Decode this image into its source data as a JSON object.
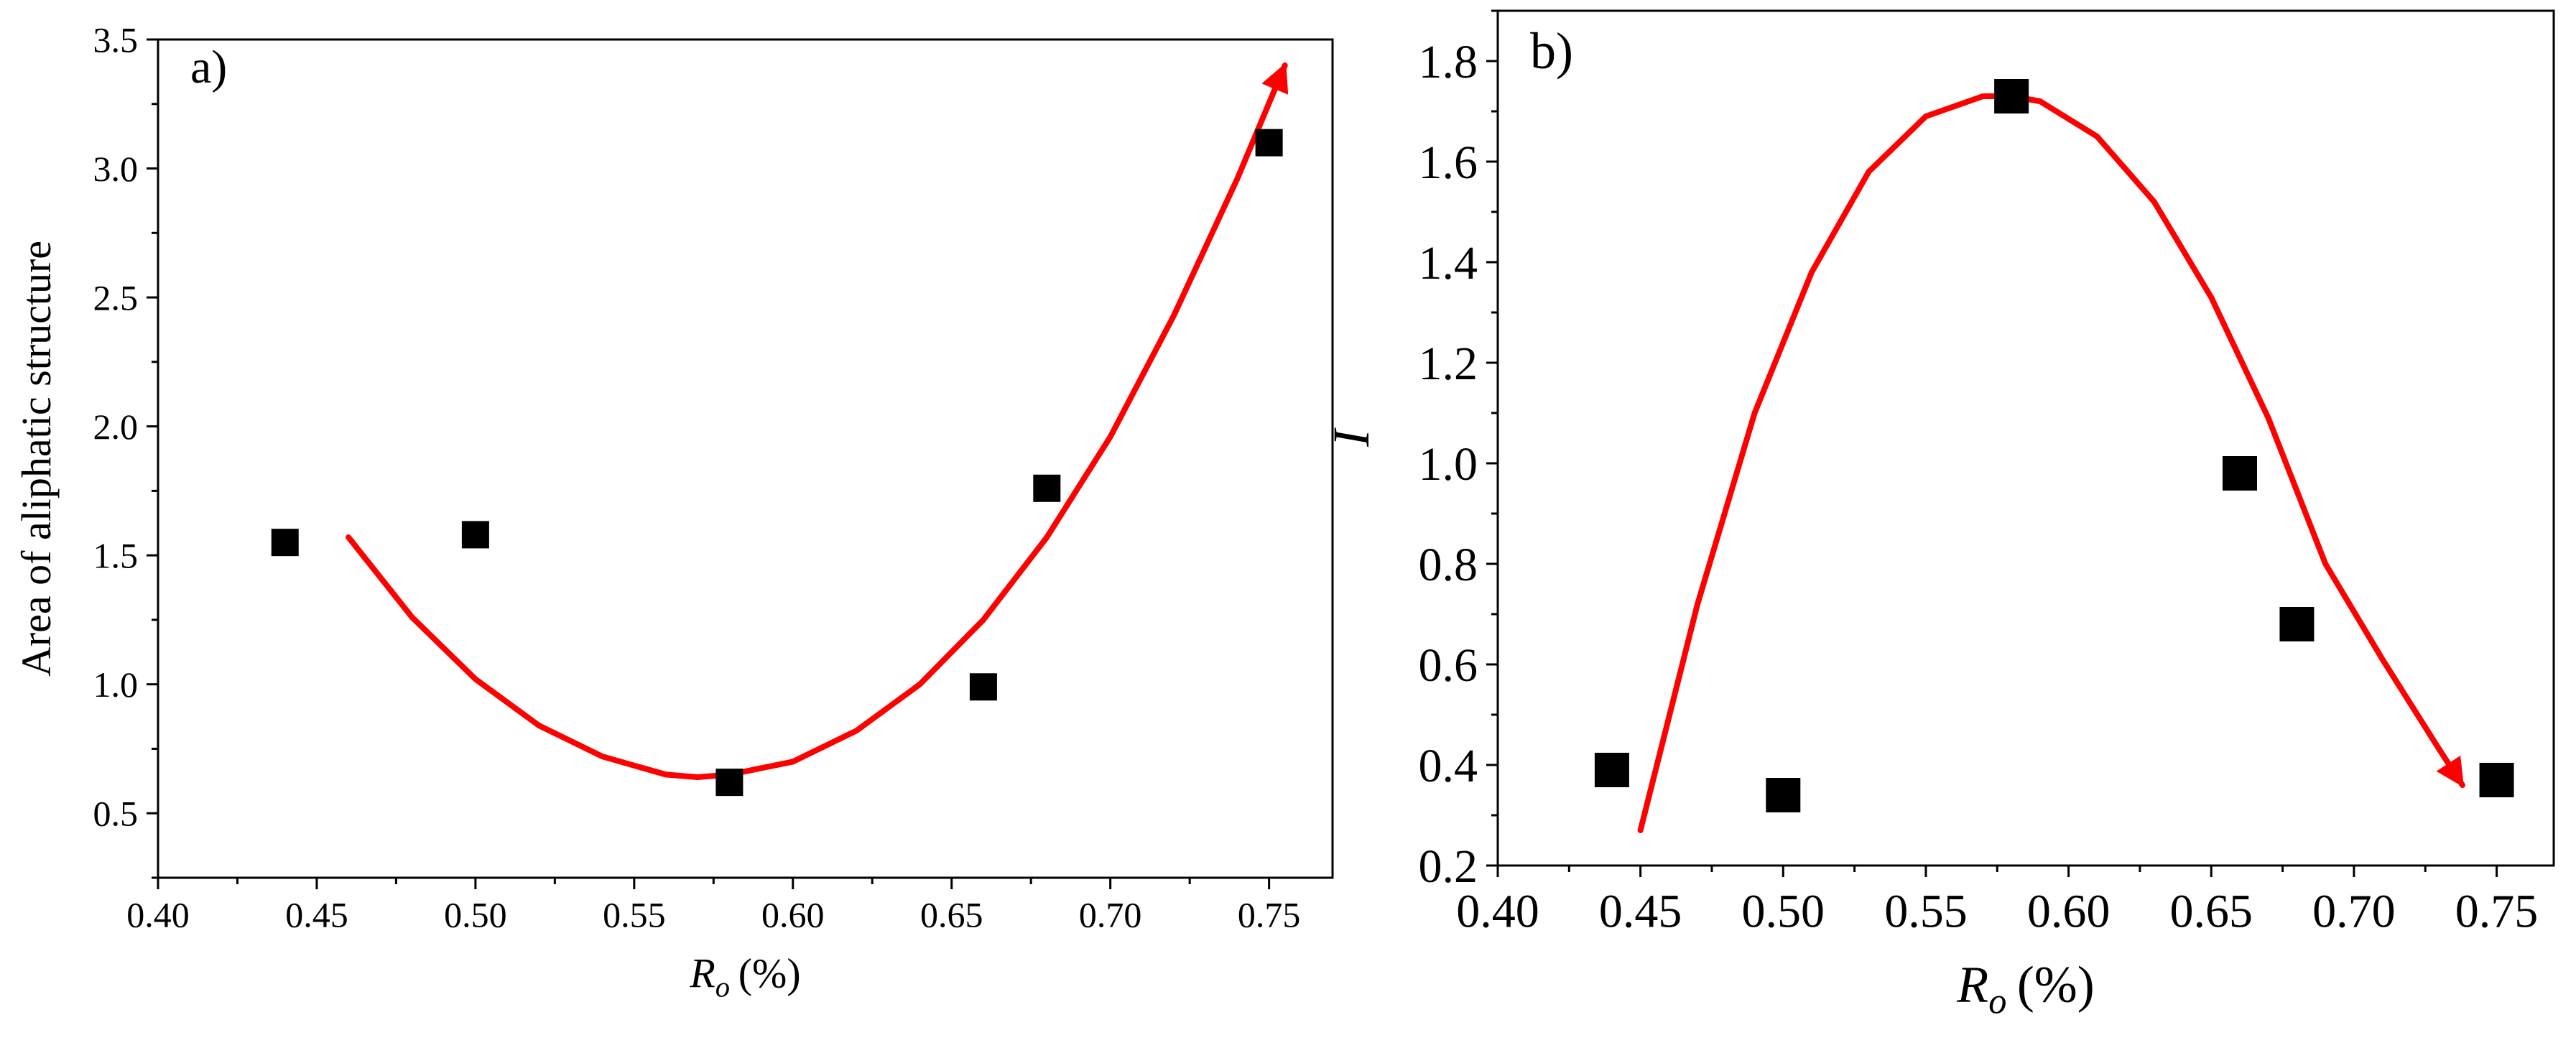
{
  "chart_data": [
    {
      "type": "scatter",
      "panel_label": "a)",
      "xlabel": "R",
      "xlabel_sub": "o",
      "xlabel_unit": "(%)",
      "ylabel": "Area of aliphatic structure",
      "xlim": [
        0.4,
        0.77
      ],
      "ylim": [
        0.25,
        3.5
      ],
      "xticks": [
        0.4,
        0.45,
        0.5,
        0.55,
        0.6,
        0.65,
        0.7,
        0.75
      ],
      "xtick_labels": [
        "0.40",
        "0.45",
        "0.50",
        "0.55",
        "0.60",
        "0.65",
        "0.70",
        "0.75"
      ],
      "yticks": [
        0.5,
        1.0,
        1.5,
        2.0,
        2.5,
        3.0,
        3.5
      ],
      "ytick_labels": [
        "0.5",
        "1.0",
        "1.5",
        "2.0",
        "2.5",
        "3.0",
        "3.5"
      ],
      "series": [
        {
          "name": "data",
          "marker": "square",
          "color": "#000000",
          "x": [
            0.44,
            0.5,
            0.58,
            0.66,
            0.68,
            0.75
          ],
          "y": [
            1.55,
            1.58,
            0.62,
            0.99,
            1.76,
            3.1
          ]
        }
      ],
      "trend": {
        "type": "quadratic-arrow",
        "color": "#ff0000",
        "x": [
          0.46,
          0.48,
          0.5,
          0.52,
          0.54,
          0.56,
          0.57,
          0.58,
          0.6,
          0.62,
          0.64,
          0.66,
          0.68,
          0.7,
          0.72,
          0.74,
          0.755
        ],
        "y": [
          1.57,
          1.26,
          1.02,
          0.84,
          0.72,
          0.65,
          0.64,
          0.65,
          0.7,
          0.82,
          1.0,
          1.25,
          1.57,
          1.96,
          2.43,
          2.96,
          3.4
        ]
      }
    },
    {
      "type": "scatter",
      "panel_label": "b)",
      "xlabel": "R",
      "xlabel_sub": "o",
      "xlabel_unit": "(%)",
      "ylabel": "I",
      "xlim": [
        0.4,
        0.77
      ],
      "ylim": [
        0.2,
        1.9
      ],
      "xticks": [
        0.4,
        0.45,
        0.5,
        0.55,
        0.6,
        0.65,
        0.7,
        0.75
      ],
      "xtick_labels": [
        "0.40",
        "0.45",
        "0.50",
        "0.55",
        "0.60",
        "0.65",
        "0.70",
        "0.75"
      ],
      "yticks": [
        0.2,
        0.4,
        0.6,
        0.8,
        1.0,
        1.2,
        1.4,
        1.6,
        1.8
      ],
      "ytick_labels": [
        "0.2",
        "0.4",
        "0.6",
        "0.8",
        "1.0",
        "1.2",
        "1.4",
        "1.6",
        "1.8"
      ],
      "series": [
        {
          "name": "data",
          "marker": "square",
          "color": "#000000",
          "x": [
            0.44,
            0.5,
            0.58,
            0.66,
            0.68,
            0.75
          ],
          "y": [
            0.39,
            0.34,
            1.73,
            0.98,
            0.68,
            0.37
          ]
        }
      ],
      "trend": {
        "type": "quadratic-arrow",
        "color": "#ff0000",
        "x": [
          0.45,
          0.47,
          0.49,
          0.51,
          0.53,
          0.55,
          0.57,
          0.58,
          0.59,
          0.61,
          0.63,
          0.65,
          0.67,
          0.69,
          0.71,
          0.73,
          0.738
        ],
        "y": [
          0.27,
          0.72,
          1.1,
          1.38,
          1.58,
          1.69,
          1.73,
          1.73,
          1.72,
          1.65,
          1.52,
          1.33,
          1.09,
          0.8,
          0.61,
          0.43,
          0.36
        ]
      }
    }
  ]
}
